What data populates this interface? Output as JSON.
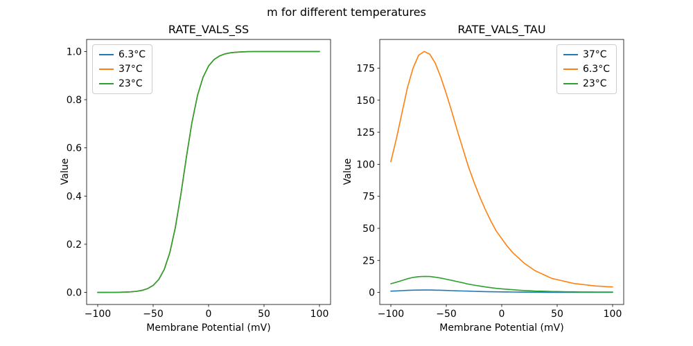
{
  "figure": {
    "title": "m for different temperatures",
    "background": "#ffffff"
  },
  "colors": {
    "series_blue": "#1f77b4",
    "series_orange": "#ff7f0e",
    "series_green": "#2ca02c",
    "axes": "#000000",
    "legend_border": "#cccccc"
  },
  "chart_data": [
    {
      "type": "line",
      "title": "RATE_VALS_SS",
      "xlabel": "Membrane Potential (mV)",
      "ylabel": "Value",
      "xlim": [
        -110,
        110
      ],
      "ylim": [
        -0.05,
        1.05
      ],
      "xticks": [
        -100,
        -50,
        0,
        50,
        100
      ],
      "xtick_labels": [
        "−100",
        "−50",
        "0",
        "50",
        "100"
      ],
      "yticks": [
        0.0,
        0.2,
        0.4,
        0.6,
        0.8,
        1.0
      ],
      "ytick_labels": [
        "0.0",
        "0.2",
        "0.4",
        "0.6",
        "0.8",
        "1.0"
      ],
      "grid": false,
      "legend_position": "upper-left",
      "x": [
        -100,
        -95,
        -90,
        -85,
        -80,
        -75,
        -70,
        -65,
        -60,
        -55,
        -50,
        -45,
        -40,
        -35,
        -30,
        -25,
        -20,
        -15,
        -10,
        -5,
        0,
        5,
        10,
        15,
        20,
        25,
        30,
        35,
        40,
        45,
        50,
        55,
        60,
        65,
        70,
        75,
        80,
        85,
        90,
        95,
        100
      ],
      "series": [
        {
          "name": "6.3°C",
          "color": "#1f77b4",
          "values": [
            0.0001,
            0.0001,
            0.0002,
            0.0004,
            0.0007,
            0.0013,
            0.0025,
            0.0046,
            0.0086,
            0.0159,
            0.0293,
            0.0534,
            0.0953,
            0.1646,
            0.269,
            0.407,
            0.562,
            0.706,
            0.8176,
            0.8933,
            0.9399,
            0.9669,
            0.982,
            0.9903,
            0.9948,
            0.9972,
            0.9985,
            0.9992,
            0.9996,
            0.9998,
            0.9999,
            0.9999,
            1.0,
            1.0,
            1.0,
            1.0,
            1.0,
            1.0,
            1.0,
            1.0,
            1.0
          ]
        },
        {
          "name": "37°C",
          "color": "#ff7f0e",
          "values": [
            0.0001,
            0.0001,
            0.0002,
            0.0004,
            0.0007,
            0.0013,
            0.0025,
            0.0046,
            0.0086,
            0.0159,
            0.0293,
            0.0534,
            0.0953,
            0.1646,
            0.269,
            0.407,
            0.562,
            0.706,
            0.8176,
            0.8933,
            0.9399,
            0.9669,
            0.982,
            0.9903,
            0.9948,
            0.9972,
            0.9985,
            0.9992,
            0.9996,
            0.9998,
            0.9999,
            0.9999,
            1.0,
            1.0,
            1.0,
            1.0,
            1.0,
            1.0,
            1.0,
            1.0,
            1.0
          ]
        },
        {
          "name": "23°C",
          "color": "#2ca02c",
          "values": [
            0.0001,
            0.0001,
            0.0002,
            0.0004,
            0.0007,
            0.0013,
            0.0025,
            0.0046,
            0.0086,
            0.0159,
            0.0293,
            0.0534,
            0.0953,
            0.1646,
            0.269,
            0.407,
            0.562,
            0.706,
            0.8176,
            0.8933,
            0.9399,
            0.9669,
            0.982,
            0.9903,
            0.9948,
            0.9972,
            0.9985,
            0.9992,
            0.9996,
            0.9998,
            0.9999,
            0.9999,
            1.0,
            1.0,
            1.0,
            1.0,
            1.0,
            1.0,
            1.0,
            1.0,
            1.0
          ]
        }
      ]
    },
    {
      "type": "line",
      "title": "RATE_VALS_TAU",
      "xlabel": "Membrane Potential (mV)",
      "ylabel": "Value",
      "xlim": [
        -110,
        110
      ],
      "ylim": [
        -9.4,
        197.4
      ],
      "xticks": [
        -100,
        -50,
        0,
        50,
        100
      ],
      "xtick_labels": [
        "−100",
        "−50",
        "0",
        "50",
        "100"
      ],
      "yticks": [
        0,
        25,
        50,
        75,
        100,
        125,
        150,
        175
      ],
      "ytick_labels": [
        "0",
        "25",
        "50",
        "75",
        "100",
        "125",
        "150",
        "175"
      ],
      "grid": false,
      "legend_position": "upper-right",
      "x": [
        -100,
        -95,
        -90,
        -85,
        -80,
        -75,
        -70,
        -65,
        -60,
        -55,
        -50,
        -45,
        -40,
        -35,
        -30,
        -25,
        -20,
        -15,
        -10,
        -5,
        0,
        5,
        10,
        15,
        20,
        25,
        30,
        35,
        40,
        45,
        50,
        55,
        60,
        65,
        70,
        75,
        80,
        85,
        90,
        95,
        100
      ],
      "series": [
        {
          "name": "37°C",
          "color": "#1f77b4",
          "values": [
            1.0,
            1.2,
            1.4,
            1.6,
            1.8,
            1.85,
            1.9,
            1.86,
            1.8,
            1.7,
            1.55,
            1.4,
            1.26,
            1.12,
            1.0,
            0.86,
            0.75,
            0.65,
            0.56,
            0.48,
            0.42,
            0.36,
            0.31,
            0.27,
            0.23,
            0.2,
            0.17,
            0.15,
            0.13,
            0.11,
            0.1,
            0.09,
            0.08,
            0.07,
            0.07,
            0.06,
            0.06,
            0.05,
            0.05,
            0.05,
            0.04
          ]
        },
        {
          "name": "6.3°C",
          "color": "#ff7f0e",
          "values": [
            102,
            120,
            140,
            160,
            175,
            185,
            188,
            186,
            179,
            168,
            155,
            141,
            126,
            112,
            98,
            86,
            75,
            65,
            56,
            48,
            42,
            36,
            31,
            27,
            23,
            20,
            17,
            15,
            13,
            11,
            10,
            9,
            8,
            7,
            6.5,
            6,
            5.5,
            5,
            4.8,
            4.5,
            4.3
          ]
        },
        {
          "name": "23°C",
          "color": "#2ca02c",
          "values": [
            6.8,
            8.0,
            9.3,
            10.7,
            11.7,
            12.3,
            12.5,
            12.4,
            11.9,
            11.2,
            10.3,
            9.4,
            8.4,
            7.5,
            6.5,
            5.7,
            5.0,
            4.3,
            3.7,
            3.2,
            2.8,
            2.4,
            2.1,
            1.8,
            1.5,
            1.3,
            1.1,
            1.0,
            0.9,
            0.7,
            0.7,
            0.6,
            0.5,
            0.5,
            0.4,
            0.4,
            0.4,
            0.3,
            0.3,
            0.3,
            0.3
          ]
        }
      ]
    }
  ]
}
